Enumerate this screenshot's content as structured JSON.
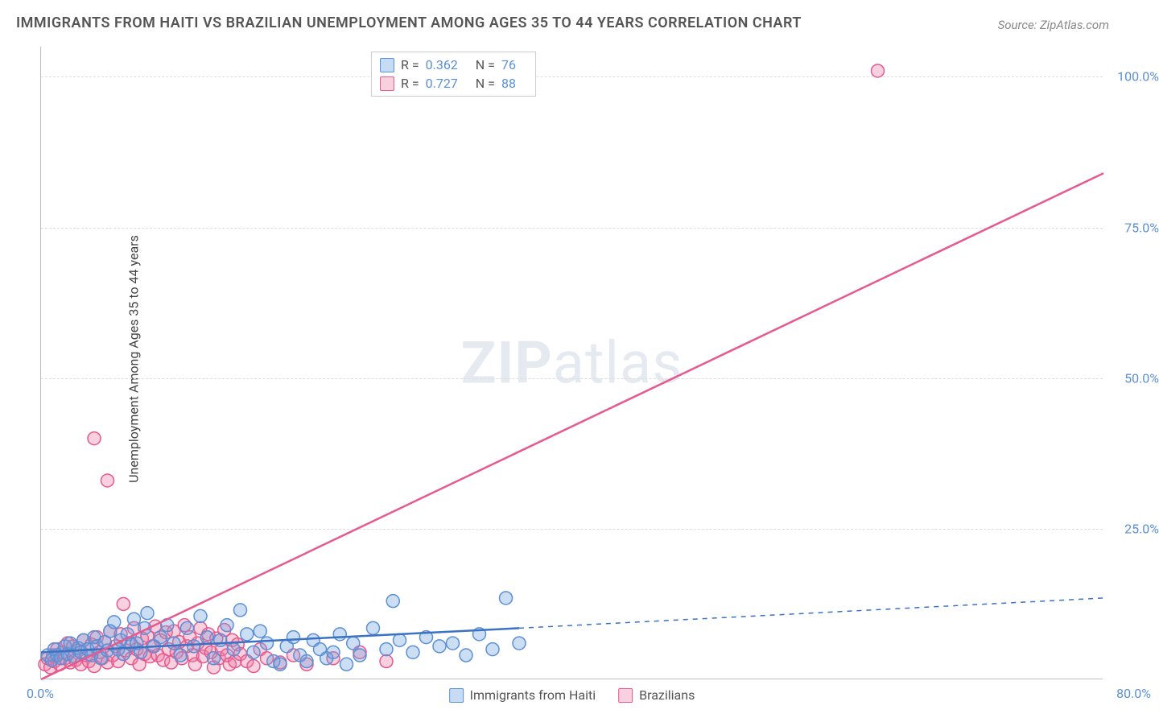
{
  "title": "IMMIGRANTS FROM HAITI VS BRAZILIAN UNEMPLOYMENT AMONG AGES 35 TO 44 YEARS CORRELATION CHART",
  "source": "Source: ZipAtlas.com",
  "ylabel": "Unemployment Among Ages 35 to 44 years",
  "watermark_bold": "ZIP",
  "watermark_light": "atlas",
  "chart": {
    "type": "scatter",
    "xlim": [
      0,
      80
    ],
    "ylim": [
      0,
      105
    ],
    "xtick_labels": [
      "0.0%",
      "80.0%"
    ],
    "ytick_values": [
      25,
      50,
      75,
      100
    ],
    "ytick_labels": [
      "25.0%",
      "50.0%",
      "75.0%",
      "100.0%"
    ],
    "background_color": "#ffffff",
    "grid_color": "#dddddd",
    "grid_dash": "4,4"
  },
  "series": {
    "haiti": {
      "label": "Immigrants from Haiti",
      "marker_fill": "rgba(108,160,220,0.35)",
      "marker_stroke": "#5b8fd6",
      "marker_radius": 8,
      "line_color": "#3a72c4",
      "line_width": 2.5,
      "swatch_fill": "#c6dcf5",
      "swatch_border": "#5b8fd6",
      "R": "0.362",
      "N": "76",
      "trend": {
        "x1": 0,
        "y1": 4.5,
        "x2": 36,
        "y2": 8.5,
        "ext_x2": 80,
        "ext_y2": 13.5
      },
      "points": [
        [
          0.5,
          4.0
        ],
        [
          0.8,
          3.2
        ],
        [
          1.0,
          5.0
        ],
        [
          1.2,
          4.0
        ],
        [
          1.5,
          3.5
        ],
        [
          1.8,
          5.5
        ],
        [
          2.0,
          4.2
        ],
        [
          2.2,
          6.0
        ],
        [
          2.5,
          3.8
        ],
        [
          2.8,
          5.2
        ],
        [
          3.0,
          4.5
        ],
        [
          3.2,
          6.5
        ],
        [
          3.5,
          5.0
        ],
        [
          3.8,
          4.0
        ],
        [
          4.0,
          7.0
        ],
        [
          4.2,
          5.5
        ],
        [
          4.5,
          3.5
        ],
        [
          4.8,
          6.2
        ],
        [
          5.0,
          4.8
        ],
        [
          5.2,
          8.0
        ],
        [
          5.5,
          9.5
        ],
        [
          5.8,
          5.0
        ],
        [
          6.0,
          6.5
        ],
        [
          6.2,
          4.2
        ],
        [
          6.5,
          7.5
        ],
        [
          6.8,
          5.8
        ],
        [
          7.0,
          10.0
        ],
        [
          7.2,
          6.0
        ],
        [
          7.5,
          4.5
        ],
        [
          7.8,
          8.5
        ],
        [
          8.0,
          11.0
        ],
        [
          8.5,
          5.5
        ],
        [
          9.0,
          7.0
        ],
        [
          9.5,
          9.0
        ],
        [
          10.0,
          6.0
        ],
        [
          10.5,
          4.0
        ],
        [
          11.0,
          8.5
        ],
        [
          11.5,
          5.5
        ],
        [
          12.0,
          10.5
        ],
        [
          12.5,
          7.0
        ],
        [
          13.0,
          3.5
        ],
        [
          13.5,
          6.5
        ],
        [
          14.0,
          9.0
        ],
        [
          14.5,
          5.0
        ],
        [
          15.0,
          11.5
        ],
        [
          15.5,
          7.5
        ],
        [
          16.0,
          4.5
        ],
        [
          16.5,
          8.0
        ],
        [
          17.0,
          6.0
        ],
        [
          17.5,
          3.0
        ],
        [
          18.0,
          2.5
        ],
        [
          18.5,
          5.5
        ],
        [
          19.0,
          7.0
        ],
        [
          19.5,
          4.0
        ],
        [
          20.0,
          3.0
        ],
        [
          20.5,
          6.5
        ],
        [
          21.0,
          5.0
        ],
        [
          21.5,
          3.5
        ],
        [
          22.0,
          4.5
        ],
        [
          22.5,
          7.5
        ],
        [
          23.0,
          2.5
        ],
        [
          23.5,
          6.0
        ],
        [
          24.0,
          4.0
        ],
        [
          25.0,
          8.5
        ],
        [
          26.0,
          5.0
        ],
        [
          26.5,
          13.0
        ],
        [
          27.0,
          6.5
        ],
        [
          28.0,
          4.5
        ],
        [
          29.0,
          7.0
        ],
        [
          30.0,
          5.5
        ],
        [
          31.0,
          6.0
        ],
        [
          32.0,
          4.0
        ],
        [
          33.0,
          7.5
        ],
        [
          34.0,
          5.0
        ],
        [
          35.0,
          13.5
        ],
        [
          36.0,
          6.0
        ]
      ]
    },
    "brazil": {
      "label": "Brazilians",
      "marker_fill": "rgba(235,120,160,0.35)",
      "marker_stroke": "#e65a8f",
      "marker_radius": 8,
      "line_color": "#e65a8f",
      "line_width": 2.5,
      "swatch_fill": "#f8d0de",
      "swatch_border": "#e65a8f",
      "R": "0.727",
      "N": "88",
      "trend": {
        "x1": 0,
        "y1": 0,
        "x2": 80,
        "y2": 84
      },
      "points": [
        [
          0.3,
          2.5
        ],
        [
          0.5,
          3.5
        ],
        [
          0.7,
          2.0
        ],
        [
          0.9,
          4.0
        ],
        [
          1.0,
          3.0
        ],
        [
          1.2,
          5.0
        ],
        [
          1.4,
          2.5
        ],
        [
          1.6,
          4.5
        ],
        [
          1.8,
          3.5
        ],
        [
          2.0,
          6.0
        ],
        [
          2.2,
          2.8
        ],
        [
          2.4,
          5.5
        ],
        [
          2.6,
          3.2
        ],
        [
          2.8,
          4.8
        ],
        [
          3.0,
          2.5
        ],
        [
          3.2,
          6.5
        ],
        [
          3.4,
          4.0
        ],
        [
          3.6,
          3.0
        ],
        [
          3.8,
          5.8
        ],
        [
          4.0,
          2.2
        ],
        [
          4.2,
          7.0
        ],
        [
          4.4,
          4.5
        ],
        [
          4.6,
          3.5
        ],
        [
          4.8,
          6.2
        ],
        [
          5.0,
          2.8
        ],
        [
          5.2,
          8.0
        ],
        [
          5.4,
          4.0
        ],
        [
          5.6,
          5.5
        ],
        [
          5.8,
          3.0
        ],
        [
          6.0,
          7.5
        ],
        [
          6.2,
          12.5
        ],
        [
          6.4,
          4.8
        ],
        [
          6.6,
          6.0
        ],
        [
          6.8,
          3.5
        ],
        [
          7.0,
          8.5
        ],
        [
          7.2,
          5.0
        ],
        [
          7.4,
          2.5
        ],
        [
          7.6,
          6.8
        ],
        [
          7.8,
          4.2
        ],
        [
          8.0,
          7.2
        ],
        [
          8.2,
          3.8
        ],
        [
          8.4,
          5.5
        ],
        [
          8.6,
          8.8
        ],
        [
          8.8,
          4.0
        ],
        [
          9.0,
          6.5
        ],
        [
          9.2,
          3.2
        ],
        [
          9.4,
          7.8
        ],
        [
          9.6,
          5.0
        ],
        [
          9.8,
          2.8
        ],
        [
          10.0,
          8.0
        ],
        [
          10.2,
          4.5
        ],
        [
          10.4,
          6.2
        ],
        [
          10.6,
          3.5
        ],
        [
          10.8,
          9.0
        ],
        [
          11.0,
          5.5
        ],
        [
          11.2,
          7.0
        ],
        [
          11.4,
          4.0
        ],
        [
          11.6,
          2.5
        ],
        [
          11.8,
          6.0
        ],
        [
          12.0,
          8.5
        ],
        [
          12.2,
          3.8
        ],
        [
          12.4,
          5.2
        ],
        [
          12.6,
          7.5
        ],
        [
          12.8,
          4.5
        ],
        [
          13.0,
          2.0
        ],
        [
          13.2,
          6.8
        ],
        [
          13.4,
          3.5
        ],
        [
          13.6,
          5.0
        ],
        [
          13.8,
          8.2
        ],
        [
          14.0,
          4.0
        ],
        [
          14.2,
          2.5
        ],
        [
          14.4,
          6.5
        ],
        [
          14.6,
          3.0
        ],
        [
          14.8,
          5.8
        ],
        [
          15.0,
          4.2
        ],
        [
          15.5,
          3.0
        ],
        [
          16.0,
          2.2
        ],
        [
          16.5,
          5.0
        ],
        [
          17.0,
          3.5
        ],
        [
          18.0,
          2.8
        ],
        [
          19.0,
          4.0
        ],
        [
          20.0,
          2.5
        ],
        [
          22.0,
          3.5
        ],
        [
          24.0,
          4.5
        ],
        [
          26.0,
          3.0
        ],
        [
          4.0,
          40.0
        ],
        [
          5.0,
          33.0
        ],
        [
          63.0,
          101.0
        ]
      ]
    }
  },
  "legend_top_labels": {
    "R": "R =",
    "N": "N ="
  },
  "legend_bottom": [
    "Immigrants from Haiti",
    "Brazilians"
  ]
}
